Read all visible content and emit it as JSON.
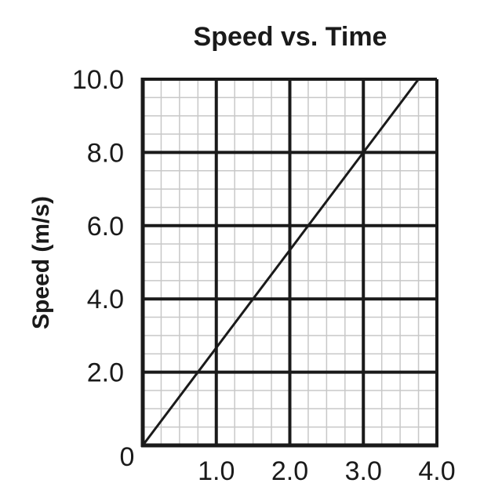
{
  "chart_data": {
    "type": "line",
    "title": "Speed vs. Time",
    "xlabel": "",
    "ylabel": "Speed (m/s)",
    "xlim": [
      0,
      4.0
    ],
    "ylim": [
      0,
      10.0
    ],
    "x_ticks": [
      {
        "value": 1.0,
        "label": "1.0"
      },
      {
        "value": 2.0,
        "label": "2.0"
      },
      {
        "value": 3.0,
        "label": "3.0"
      },
      {
        "value": 4.0,
        "label": "4.0"
      }
    ],
    "y_ticks": [
      {
        "value": 2.0,
        "label": "2.0"
      },
      {
        "value": 4.0,
        "label": "4.0"
      },
      {
        "value": 6.0,
        "label": "6.0"
      },
      {
        "value": 8.0,
        "label": "8.0"
      },
      {
        "value": 10.0,
        "label": "10.0"
      }
    ],
    "origin_label": "0",
    "x_minor_step": 0.5,
    "y_minor_step": 1.0,
    "grid": true,
    "series": [
      {
        "x": [
          0,
          3.0,
          3.75
        ],
        "y": [
          0,
          8.0,
          10.0
        ]
      }
    ],
    "line_color": "#1a1a1a"
  }
}
